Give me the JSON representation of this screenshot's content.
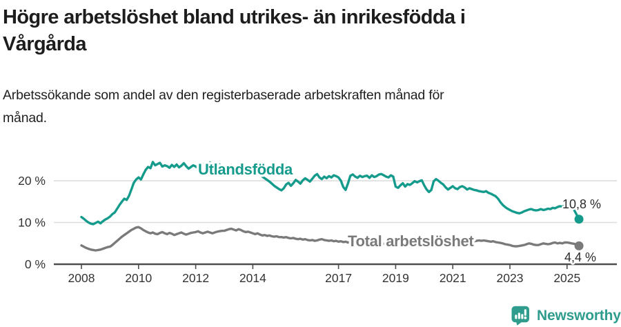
{
  "header": {
    "title_line1": "Högre arbetslöshet bland utrikes- än inrikesfödda i",
    "title_line2": "Vårgårda",
    "subtitle_line1": "Arbetssökande som andel av den registerbaserade arbetskraften månad för",
    "subtitle_line2": "månad."
  },
  "footer": {
    "brand": "Newsworthy",
    "brand_color": "#2f9c8e"
  },
  "chart_data": {
    "type": "line",
    "title": "Högre arbetslöshet bland utrikes- än inrikesfödda i Vårgårda",
    "subtitle": "Arbetssökande som andel av den registerbaserade arbetskraften månad för månad.",
    "unit": "%",
    "frequency": "monthly",
    "x_start": "2008-01",
    "x_end": "2025-06",
    "ylim": [
      0,
      26
    ],
    "grid": "horizontal",
    "grid_color": "#dcdcdc",
    "axis_color": "#4d4d4d",
    "yticks": [
      {
        "value": 0,
        "label": "0 %"
      },
      {
        "value": 10,
        "label": "10 %"
      },
      {
        "value": 20,
        "label": "20 %"
      }
    ],
    "xticks": [
      {
        "value": 2008,
        "label": "2008"
      },
      {
        "value": 2010,
        "label": "2010"
      },
      {
        "value": 2012,
        "label": "2012"
      },
      {
        "value": 2014,
        "label": "2014"
      },
      {
        "value": 2017,
        "label": "2017"
      },
      {
        "value": 2019,
        "label": "2019"
      },
      {
        "value": 2021,
        "label": "2021"
      },
      {
        "value": 2023,
        "label": "2023"
      },
      {
        "value": 2025,
        "label": "2025"
      }
    ],
    "series": [
      {
        "name": "Utlandsfödda",
        "color": "#159b8c",
        "end_value": 10.8,
        "end_label": "10,8 %",
        "values": [
          11.3,
          10.9,
          10.4,
          10.0,
          9.7,
          9.6,
          9.9,
          10.2,
          9.8,
          10.3,
          10.7,
          11.0,
          11.4,
          12.0,
          12.4,
          13.3,
          14.2,
          15.0,
          15.7,
          15.4,
          16.4,
          17.9,
          19.5,
          20.3,
          20.8,
          20.3,
          21.5,
          22.6,
          23.3,
          23.0,
          24.5,
          23.7,
          24.0,
          24.3,
          23.4,
          23.7,
          23.5,
          23.1,
          23.8,
          23.3,
          23.9,
          23.2,
          23.6,
          24.2,
          23.5,
          22.9,
          23.3,
          23.7,
          23.4,
          23.0,
          23.9,
          24.1,
          23.5,
          23.1,
          24.4,
          23.8,
          23.2,
          23.6,
          23.9,
          23.3,
          23.0,
          22.5,
          23.4,
          23.8,
          23.2,
          23.5,
          23.1,
          23.6,
          23.3,
          22.9,
          23.4,
          23.1,
          22.9,
          22.5,
          22.1,
          21.5,
          21.0,
          20.6,
          20.2,
          19.8,
          19.3,
          18.8,
          18.4,
          18.0,
          17.7,
          18.2,
          19.1,
          19.5,
          18.8,
          19.4,
          20.2,
          19.8,
          19.3,
          20.1,
          20.6,
          20.2,
          19.8,
          20.5,
          21.2,
          21.6,
          20.8,
          20.4,
          21.0,
          20.6,
          21.1,
          20.8,
          21.3,
          21.1,
          20.8,
          20.0,
          18.5,
          17.8,
          19.4,
          21.2,
          21.5,
          21.0,
          20.7,
          21.2,
          20.9,
          21.1,
          21.2,
          20.7,
          21.3,
          20.9,
          21.1,
          21.5,
          21.6,
          21.3,
          21.0,
          20.8,
          21.3,
          21.0,
          18.6,
          18.3,
          18.9,
          19.4,
          18.6,
          19.2,
          19.0,
          19.4,
          19.9,
          19.6,
          19.9,
          20.1,
          18.9,
          17.9,
          17.3,
          17.8,
          19.9,
          20.4,
          20.0,
          19.5,
          19.1,
          18.4,
          17.9,
          18.3,
          18.7,
          18.2,
          18.0,
          18.5,
          18.7,
          18.4,
          17.9,
          18.2,
          18.0,
          17.8,
          17.7,
          17.5,
          17.4,
          17.3,
          17.5,
          17.1,
          16.9,
          16.6,
          16.3,
          15.7,
          14.9,
          14.2,
          13.7,
          13.3,
          13.0,
          12.7,
          12.5,
          12.3,
          12.2,
          12.4,
          12.7,
          12.9,
          13.1,
          13.2,
          13.0,
          12.9,
          13.0,
          13.2,
          13.0,
          13.1,
          13.3,
          13.2,
          13.5,
          13.4,
          13.7,
          13.9,
          13.8,
          14.0,
          14.0,
          14.2,
          13.8,
          13.0,
          11.9,
          10.8
        ]
      },
      {
        "name": "Total arbetslöshet",
        "color": "#7a7a7a",
        "end_value": 4.4,
        "end_label": "4,4 %",
        "values": [
          4.5,
          4.2,
          3.9,
          3.7,
          3.5,
          3.4,
          3.3,
          3.4,
          3.5,
          3.7,
          3.9,
          4.1,
          4.2,
          4.6,
          5.1,
          5.6,
          6.1,
          6.6,
          7.0,
          7.4,
          7.8,
          8.2,
          8.5,
          8.8,
          8.9,
          8.6,
          8.2,
          7.9,
          7.6,
          7.4,
          7.6,
          7.3,
          7.2,
          7.5,
          7.7,
          7.4,
          7.2,
          7.5,
          7.3,
          7.0,
          7.2,
          7.4,
          7.6,
          7.3,
          7.1,
          7.3,
          7.5,
          7.6,
          7.7,
          7.9,
          7.6,
          7.4,
          7.6,
          7.8,
          7.6,
          7.4,
          7.6,
          7.8,
          7.9,
          8.0,
          8.0,
          8.2,
          8.4,
          8.5,
          8.3,
          8.1,
          8.4,
          8.2,
          7.9,
          7.7,
          7.8,
          7.6,
          7.4,
          7.2,
          7.4,
          7.1,
          6.9,
          7.0,
          6.8,
          6.9,
          6.7,
          6.6,
          6.7,
          6.5,
          6.5,
          6.4,
          6.5,
          6.3,
          6.2,
          6.3,
          6.1,
          6.0,
          6.1,
          5.9,
          6.0,
          5.8,
          5.7,
          5.8,
          5.6,
          5.7,
          5.9,
          6.0,
          5.8,
          5.7,
          5.6,
          5.7,
          5.5,
          5.6,
          5.4,
          5.5,
          5.3,
          5.4,
          5.2,
          5.3,
          5.4,
          5.2,
          5.3,
          5.1,
          5.2,
          5.3,
          5.2,
          5.1,
          5.2,
          5.0,
          5.1,
          5.2,
          5.0,
          4.9,
          5.0,
          5.1,
          5.0,
          4.9,
          5.0,
          5.1,
          5.2,
          5.1,
          5.0,
          5.1,
          5.2,
          5.3,
          5.2,
          5.3,
          5.4,
          5.5,
          5.6,
          5.8,
          6.0,
          6.2,
          6.3,
          6.2,
          6.1,
          6.0,
          5.9,
          5.8,
          5.7,
          5.7,
          5.8,
          5.7,
          5.6,
          5.5,
          5.6,
          5.5,
          5.4,
          5.5,
          5.6,
          5.5,
          5.6,
          5.7,
          5.6,
          5.7,
          5.6,
          5.5,
          5.4,
          5.5,
          5.3,
          5.2,
          5.1,
          5.0,
          4.8,
          4.7,
          4.6,
          4.4,
          4.3,
          4.3,
          4.4,
          4.5,
          4.6,
          4.8,
          5.0,
          4.9,
          4.7,
          4.6,
          4.6,
          4.8,
          5.0,
          4.9,
          4.8,
          4.9,
          5.1,
          5.2,
          5.0,
          5.1,
          5.0,
          5.2,
          5.2,
          5.1,
          5.0,
          4.9,
          4.7,
          4.4
        ]
      }
    ],
    "legend_position": "inline-labels"
  }
}
